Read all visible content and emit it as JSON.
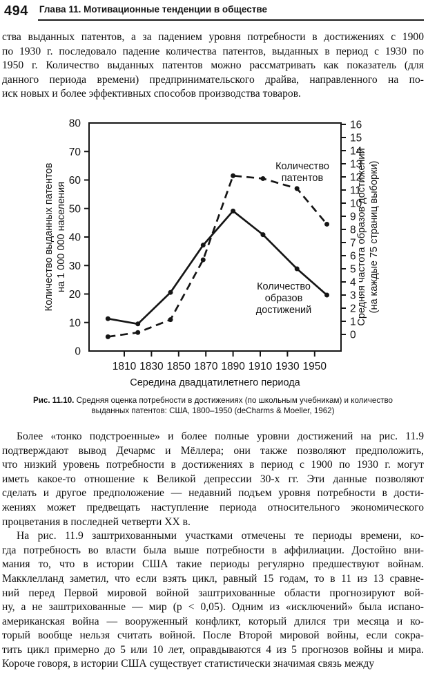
{
  "header": {
    "page_number": "494",
    "chapter_title": "Глава 11. Мотивационные тенденции в обществе"
  },
  "paragraphs": [
    {
      "name": "paragraph-patents-continuation",
      "indent": false,
      "lines": [
        "ства выданных патентов, а за падением уровня потребности в достижениях с 1900",
        "по 1930 г. последовало падение количества патентов, выданных в период с 1930 по",
        "1950 г. Количество выданных патентов можно рассматривать как показатель (для",
        "данного периода времени) предпринимательского драйва, направленного на по-",
        "иск новых и более эффективных способов производства товаров."
      ]
    },
    {
      "name": "paragraph-achievement-levels",
      "indent": true,
      "lines": [
        "Более «тонко подстроенные» и более полные уровни достижений на рис. 11.9",
        "подтверждают вывод Дечармс и Мёллера; они также позволяют предположить,",
        "что низкий уровень потребности в достижениях в период с 1900 по 1930 г. могут",
        "иметь какое-то отношение к Великой депрессии 30-х гг. Эти данные позволяют",
        "сделать и другое предположение — недавний подъем уровня потребности в дости-",
        "жениях может предвещать наступление периода относительного экономического",
        "процветания в последней четверти XX в."
      ]
    },
    {
      "name": "paragraph-war-periods",
      "indent": true,
      "lines": [
        "На рис. 11.9 заштрихованными участками отмечены те периоды времени, ко-",
        "гда потребность во власти была выше потребности в аффилиации. Достойно вни-",
        "мания то, что в истории США такие периоды регулярно предшествуют войнам.",
        "Макклелланд заметил, что если взять цикл, равный 15 годам, то в 11 из 13 сравне-",
        "ний перед Первой мировой войной заштрихованные области прогнозируют вой-",
        "ну, а не заштрихованные — мир (p < 0,05). Одним из «исключений» была испано-",
        "американская война — вооруженный конфликт, который длился три месяца и ко-",
        "торый вообще нельзя считать войной. После Второй мировой войны, если сокра-",
        "тить цикл примерно до 5 или 10 лет, оправдываются 4 из 5 прогнозов войны и мира.",
        "Короче говоря, в истории США существует статистически значимая связь между"
      ]
    }
  ],
  "caption": {
    "label": "Рис. 11.10.",
    "text": "Средняя оценка потребности в достижениях (по школьным учебникам) и количество выданных патентов: США, 1800–1950 (deCharms & Moeller, 1962)"
  },
  "chart_data": {
    "type": "line",
    "title": "",
    "xlabel": "Середина двадцатилетнего периода",
    "x_tick_labels": [
      1810,
      1830,
      1850,
      1870,
      1890,
      1910,
      1930,
      1950
    ],
    "left_axis": {
      "label_lines": [
        "Количество выданных патентов",
        "на 1 000 000 населения"
      ],
      "ticks": [
        0,
        10,
        20,
        30,
        40,
        50,
        60,
        70,
        80
      ],
      "range": [
        0,
        80
      ]
    },
    "right_axis": {
      "label_lines": [
        "Средняя частота образов достижений",
        "(на каждые 75 страниц выборки)"
      ],
      "ticks": [
        0,
        1,
        2,
        3,
        4,
        5,
        6,
        7,
        8,
        9,
        10,
        11,
        12,
        13,
        14,
        15,
        16
      ],
      "range": [
        0,
        16
      ]
    },
    "grid": false,
    "series": [
      {
        "name": "Количество патентов",
        "label_lines": [
          "Количество",
          "патентов"
        ],
        "axis": "left",
        "line_style": "dashed",
        "x": [
          1798,
          1820,
          1844,
          1868,
          1890,
          1912,
          1937,
          1959
        ],
        "values": [
          5,
          6.5,
          11,
          32,
          61.5,
          60.5,
          57,
          44.5
        ]
      },
      {
        "name": "Количество образов достижений",
        "label_lines": [
          "Количество",
          "образов",
          "достижений"
        ],
        "axis": "right",
        "line_style": "solid",
        "x": [
          1798,
          1820,
          1844,
          1868,
          1890,
          1912,
          1937,
          1959
        ],
        "values": [
          1.2,
          0.8,
          3.2,
          6.8,
          9.4,
          7.6,
          5.0,
          3.0
        ]
      }
    ]
  },
  "colors": {
    "ink": "#151515",
    "paper": "#ffffff"
  }
}
